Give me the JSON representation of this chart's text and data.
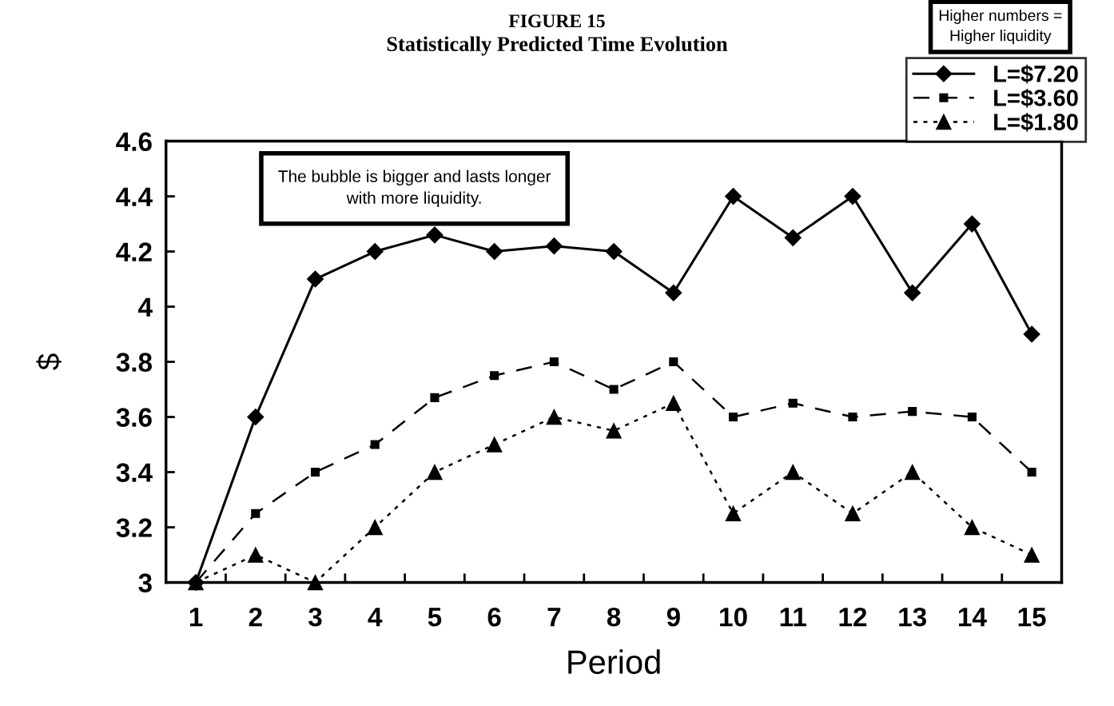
{
  "chart_data": {
    "type": "line",
    "title": "FIGURE 15",
    "subtitle": "Statistically Predicted Time Evolution",
    "xlabel": "Period",
    "ylabel": "$",
    "categories": [
      "1",
      "2",
      "3",
      "4",
      "5",
      "6",
      "7",
      "8",
      "9",
      "10",
      "11",
      "12",
      "13",
      "14",
      "15"
    ],
    "series": [
      {
        "name": "L=$7.20",
        "color": "#000000",
        "marker": "diamond",
        "line_style": "solid",
        "values": [
          3.0,
          3.6,
          4.1,
          4.2,
          4.26,
          4.2,
          4.22,
          4.2,
          4.05,
          4.4,
          4.25,
          4.4,
          4.05,
          4.3,
          3.9
        ]
      },
      {
        "name": "L=$3.60",
        "color": "#000000",
        "marker": "square",
        "line_style": "dashed",
        "values": [
          3.0,
          3.25,
          3.4,
          3.5,
          3.67,
          3.75,
          3.8,
          3.7,
          3.8,
          3.6,
          3.65,
          3.6,
          3.62,
          3.6,
          3.4
        ]
      },
      {
        "name": "L=$1.80",
        "color": "#000000",
        "marker": "triangle",
        "line_style": "dotted",
        "values": [
          3.0,
          3.1,
          3.0,
          3.2,
          3.4,
          3.5,
          3.6,
          3.55,
          3.65,
          3.25,
          3.4,
          3.25,
          3.4,
          3.2,
          3.1
        ]
      }
    ],
    "ylim": [
      3,
      4.6
    ],
    "yticks": [
      3,
      3.2,
      3.4,
      3.6,
      3.8,
      4,
      4.2,
      4.4,
      4.6
    ],
    "grid": false,
    "legend": "top right",
    "annotations": [
      "The bubble is bigger and lasts longer\nwith more liquidity.",
      "Higher numbers =\nHigher liquidity"
    ]
  }
}
